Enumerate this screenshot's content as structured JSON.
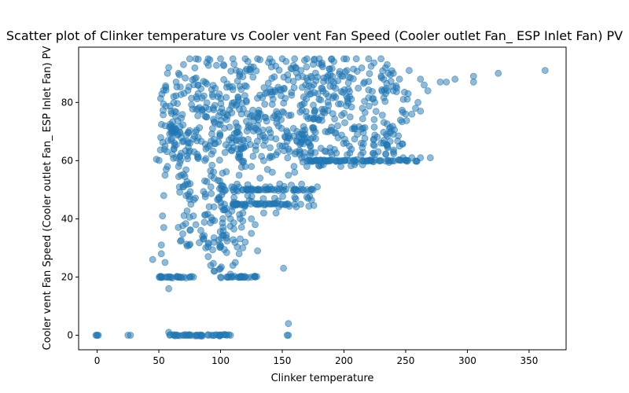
{
  "chart_data": {
    "type": "scatter",
    "title": "Scatter plot of Clinker temperature vs Cooler vent Fan Speed (Cooler outlet Fan_ ESP Inlet Fan) PV",
    "xlabel": "Clinker temperature",
    "ylabel": "Cooler vent Fan Speed (Cooler outlet Fan_ ESP Inlet Fan) PV",
    "xlim": [
      -15,
      380
    ],
    "ylim": [
      -5,
      99
    ],
    "xticks": [
      0,
      50,
      100,
      150,
      200,
      250,
      300,
      350
    ],
    "yticks": [
      0,
      20,
      40,
      60,
      80
    ],
    "grid": false,
    "marker_color": "#1f77b4",
    "marker_alpha": 0.5,
    "dense_regions": [
      {
        "x": [
          75,
          235
        ],
        "y": [
          75,
          95
        ]
      },
      {
        "x": [
          60,
          255
        ],
        "y": [
          62,
          92
        ]
      },
      {
        "x": [
          60,
          180
        ],
        "y": [
          60,
          78
        ]
      },
      {
        "x": [
          65,
          120
        ],
        "y": [
          30,
          70
        ]
      },
      {
        "x": [
          85,
          105
        ],
        "y": [
          22,
          60
        ]
      },
      {
        "x": [
          48,
          68
        ],
        "y": [
          60,
          88
        ]
      },
      {
        "x": [
          100,
          180
        ],
        "y": [
          44,
          52
        ]
      },
      {
        "x": [
          150,
          240
        ],
        "y": [
          58,
          72
        ]
      }
    ],
    "bands": [
      {
        "x": [
          50,
          80
        ],
        "y": 20
      },
      {
        "x": [
          100,
          130
        ],
        "y": 20
      },
      {
        "x": [
          58,
          108
        ],
        "y": 0
      },
      {
        "x": [
          170,
          260
        ],
        "y": 60
      },
      {
        "x": [
          115,
          175
        ],
        "y": 50
      },
      {
        "x": [
          110,
          155
        ],
        "y": 45
      }
    ],
    "points": [
      [
        0,
        0
      ],
      [
        0,
        0
      ],
      [
        -1,
        0
      ],
      [
        1,
        0
      ],
      [
        25,
        0
      ],
      [
        27,
        0
      ],
      [
        155,
        0
      ],
      [
        154,
        0
      ],
      [
        155,
        4
      ],
      [
        58,
        1
      ],
      [
        45,
        26
      ],
      [
        58,
        16
      ],
      [
        52,
        28
      ],
      [
        55,
        25
      ],
      [
        52,
        31
      ],
      [
        53,
        41
      ],
      [
        54,
        37
      ],
      [
        54,
        48
      ],
      [
        55,
        55
      ],
      [
        56,
        57
      ],
      [
        57,
        58
      ],
      [
        55,
        65
      ],
      [
        55,
        72
      ],
      [
        58,
        92
      ],
      [
        57,
        90
      ],
      [
        151,
        23
      ],
      [
        145,
        42
      ],
      [
        130,
        29
      ],
      [
        125,
        40
      ],
      [
        270,
        61
      ],
      [
        262,
        61
      ],
      [
        255,
        61
      ],
      [
        248,
        61
      ],
      [
        240,
        63
      ],
      [
        245,
        65
      ],
      [
        232,
        66
      ],
      [
        230,
        60
      ],
      [
        278,
        87
      ],
      [
        283,
        87
      ],
      [
        290,
        88
      ],
      [
        305,
        87
      ],
      [
        305,
        89
      ],
      [
        325,
        90
      ],
      [
        363,
        91
      ],
      [
        265,
        86
      ],
      [
        262,
        88
      ],
      [
        268,
        84
      ],
      [
        260,
        80
      ],
      [
        262,
        77
      ],
      [
        258,
        78
      ],
      [
        255,
        76
      ],
      [
        250,
        76
      ],
      [
        252,
        83
      ],
      [
        245,
        88
      ],
      [
        240,
        90
      ],
      [
        235,
        93
      ],
      [
        236,
        90
      ],
      [
        240,
        84
      ],
      [
        230,
        66
      ],
      [
        225,
        62
      ],
      [
        120,
        58
      ],
      [
        115,
        55
      ],
      [
        110,
        50
      ],
      [
        112,
        45
      ],
      [
        108,
        40
      ],
      [
        118,
        42
      ],
      [
        122,
        48
      ],
      [
        130,
        50
      ],
      [
        140,
        51
      ],
      [
        150,
        50
      ],
      [
        160,
        50
      ],
      [
        170,
        50
      ],
      [
        175,
        50
      ],
      [
        165,
        45
      ],
      [
        160,
        45
      ],
      [
        155,
        45
      ],
      [
        150,
        45
      ],
      [
        140,
        45
      ],
      [
        135,
        42
      ],
      [
        128,
        38
      ],
      [
        125,
        35
      ],
      [
        120,
        32
      ],
      [
        118,
        30
      ],
      [
        115,
        28
      ],
      [
        112,
        25
      ],
      [
        110,
        24
      ],
      [
        108,
        21
      ],
      [
        95,
        22
      ],
      [
        92,
        24
      ],
      [
        90,
        27
      ],
      [
        88,
        30
      ],
      [
        86,
        33
      ],
      [
        84,
        36
      ],
      [
        80,
        38
      ],
      [
        78,
        41
      ],
      [
        76,
        45
      ],
      [
        72,
        48
      ],
      [
        70,
        51
      ],
      [
        68,
        55
      ],
      [
        66,
        58
      ],
      [
        64,
        61
      ],
      [
        62,
        64
      ],
      [
        60,
        67
      ],
      [
        60,
        72
      ],
      [
        60,
        77
      ],
      [
        62,
        82
      ],
      [
        64,
        87
      ],
      [
        66,
        90
      ],
      [
        70,
        93
      ],
      [
        75,
        95
      ],
      [
        80,
        95
      ],
      [
        90,
        95
      ],
      [
        100,
        95
      ],
      [
        110,
        95
      ],
      [
        120,
        95
      ],
      [
        130,
        95
      ],
      [
        140,
        95
      ],
      [
        150,
        95
      ],
      [
        160,
        95
      ],
      [
        170,
        95
      ],
      [
        180,
        95
      ],
      [
        190,
        95
      ],
      [
        200,
        95
      ],
      [
        210,
        95
      ],
      [
        220,
        95
      ],
      [
        230,
        95
      ],
      [
        225,
        80
      ],
      [
        215,
        78
      ],
      [
        205,
        75
      ],
      [
        195,
        72
      ],
      [
        185,
        70
      ],
      [
        175,
        68
      ],
      [
        165,
        66
      ],
      [
        155,
        64
      ],
      [
        145,
        62
      ],
      [
        135,
        60
      ],
      [
        125,
        58
      ],
      [
        178,
        60
      ],
      [
        185,
        60
      ],
      [
        195,
        60
      ],
      [
        205,
        60
      ],
      [
        215,
        60
      ],
      [
        222,
        60
      ],
      [
        198,
        60
      ],
      [
        188,
        60
      ],
      [
        170,
        58
      ],
      [
        160,
        56
      ],
      [
        155,
        55
      ],
      [
        148,
        52
      ],
      [
        142,
        56
      ],
      [
        138,
        57
      ],
      [
        132,
        54
      ],
      [
        128,
        50
      ],
      [
        100,
        20
      ],
      [
        105,
        20
      ],
      [
        110,
        20
      ],
      [
        115,
        20
      ],
      [
        120,
        20
      ],
      [
        125,
        20
      ],
      [
        128,
        20
      ],
      [
        52,
        20
      ],
      [
        55,
        20
      ],
      [
        60,
        20
      ],
      [
        65,
        20
      ],
      [
        70,
        20
      ],
      [
        75,
        20
      ],
      [
        78,
        20
      ],
      [
        62,
        0
      ],
      [
        65,
        0
      ],
      [
        70,
        0
      ],
      [
        75,
        0
      ],
      [
        80,
        0
      ],
      [
        85,
        0
      ],
      [
        90,
        0
      ],
      [
        95,
        0
      ],
      [
        100,
        0
      ],
      [
        105,
        0
      ],
      [
        108,
        0
      ]
    ]
  }
}
